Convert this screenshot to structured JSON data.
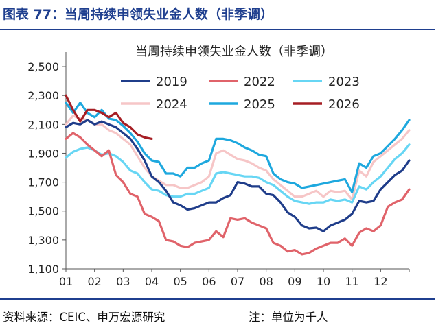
{
  "figure": {
    "title": "图表 77：当周持续申领失业金人数（非季调）",
    "source": "资料来源：CEIC、申万宏源研究",
    "note": "注：单位为千人"
  },
  "chart_data": {
    "type": "line",
    "title": "当周持续申领失业金人数（非季调）",
    "xlabel": "",
    "ylabel": "",
    "x_domain": [
      1,
      13
    ],
    "ylim": [
      1100,
      2600
    ],
    "yticks": [
      1100,
      1300,
      1500,
      1700,
      1900,
      2100,
      2300,
      2500
    ],
    "ytick_labels": [
      "1,100",
      "1,300",
      "1,500",
      "1,700",
      "1,900",
      "2,100",
      "2,300",
      "2,500"
    ],
    "xticks": [
      "01",
      "02",
      "03",
      "04",
      "05",
      "06",
      "07",
      "08",
      "09",
      "10",
      "11",
      "12"
    ],
    "grid": false,
    "legend": "top, inside plot, 3 columns",
    "series": [
      {
        "name": "2019",
        "color": "#1f3d8a",
        "x": [
          1.0,
          1.25,
          1.5,
          1.75,
          2.0,
          2.25,
          2.5,
          2.75,
          3.0,
          3.25,
          3.5,
          3.75,
          4.0,
          4.25,
          4.5,
          4.75,
          5.0,
          5.25,
          5.5,
          5.75,
          6.0,
          6.25,
          6.5,
          6.75,
          7.0,
          7.25,
          7.5,
          7.75,
          8.0,
          8.25,
          8.5,
          8.75,
          9.0,
          9.25,
          9.5,
          9.75,
          10.0,
          10.25,
          10.5,
          10.75,
          11.0,
          11.25,
          11.5,
          11.75,
          12.0,
          12.25,
          12.5,
          12.75,
          13.0
        ],
        "y": [
          2080,
          2110,
          2100,
          2130,
          2100,
          2120,
          2100,
          2080,
          2040,
          2000,
          1930,
          1850,
          1740,
          1700,
          1640,
          1560,
          1540,
          1510,
          1520,
          1540,
          1560,
          1560,
          1590,
          1610,
          1700,
          1690,
          1670,
          1670,
          1620,
          1610,
          1560,
          1490,
          1460,
          1400,
          1380,
          1385,
          1360,
          1400,
          1420,
          1440,
          1480,
          1570,
          1560,
          1570,
          1650,
          1700,
          1750,
          1780,
          1850
        ]
      },
      {
        "name": "2022",
        "color": "#e0636a",
        "x": [
          1.0,
          1.25,
          1.5,
          1.75,
          2.0,
          2.25,
          2.5,
          2.75,
          3.0,
          3.25,
          3.5,
          3.75,
          4.0,
          4.25,
          4.5,
          4.75,
          5.0,
          5.25,
          5.5,
          5.75,
          6.0,
          6.25,
          6.5,
          6.75,
          7.0,
          7.25,
          7.5,
          7.75,
          8.0,
          8.25,
          8.5,
          8.75,
          9.0,
          9.25,
          9.5,
          9.75,
          10.0,
          10.25,
          10.5,
          10.75,
          11.0,
          11.25,
          11.5,
          11.75,
          12.0,
          12.25,
          12.5,
          12.75,
          13.0
        ],
        "y": [
          2000,
          2040,
          2010,
          1960,
          1920,
          1880,
          1920,
          1750,
          1700,
          1620,
          1600,
          1480,
          1460,
          1430,
          1300,
          1290,
          1260,
          1250,
          1280,
          1290,
          1300,
          1360,
          1320,
          1450,
          1440,
          1450,
          1420,
          1400,
          1380,
          1280,
          1260,
          1220,
          1230,
          1200,
          1210,
          1240,
          1260,
          1280,
          1280,
          1310,
          1260,
          1350,
          1380,
          1360,
          1400,
          1530,
          1560,
          1580,
          1650
        ]
      },
      {
        "name": "2023",
        "color": "#67d6f4",
        "x": [
          1.0,
          1.25,
          1.5,
          1.75,
          2.0,
          2.25,
          2.5,
          2.75,
          3.0,
          3.25,
          3.5,
          3.75,
          4.0,
          4.25,
          4.5,
          4.75,
          5.0,
          5.25,
          5.5,
          5.75,
          6.0,
          6.25,
          6.5,
          6.75,
          7.0,
          7.25,
          7.5,
          7.75,
          8.0,
          8.25,
          8.5,
          8.75,
          9.0,
          9.25,
          9.5,
          9.75,
          10.0,
          10.25,
          10.5,
          10.75,
          11.0,
          11.25,
          11.5,
          11.75,
          12.0,
          12.25,
          12.5,
          12.75,
          13.0
        ],
        "y": [
          1870,
          1910,
          1930,
          1940,
          1920,
          1890,
          1900,
          1880,
          1840,
          1780,
          1760,
          1700,
          1650,
          1640,
          1610,
          1600,
          1600,
          1620,
          1620,
          1640,
          1660,
          1760,
          1770,
          1760,
          1750,
          1740,
          1740,
          1730,
          1700,
          1680,
          1640,
          1600,
          1570,
          1560,
          1550,
          1560,
          1560,
          1580,
          1570,
          1580,
          1560,
          1670,
          1650,
          1700,
          1740,
          1800,
          1860,
          1900,
          1960
        ]
      },
      {
        "name": "2024",
        "color": "#f6c6c7",
        "x": [
          1.0,
          1.25,
          1.5,
          1.75,
          2.0,
          2.25,
          2.5,
          2.75,
          3.0,
          3.25,
          3.5,
          3.75,
          4.0,
          4.25,
          4.5,
          4.75,
          5.0,
          5.25,
          5.5,
          5.75,
          6.0,
          6.25,
          6.5,
          6.75,
          7.0,
          7.25,
          7.5,
          7.75,
          8.0,
          8.25,
          8.5,
          8.75,
          9.0,
          9.25,
          9.5,
          9.75,
          10.0,
          10.25,
          10.5,
          10.75,
          11.0,
          11.25,
          11.5,
          11.75,
          12.0,
          12.25,
          12.5,
          12.75,
          13.0
        ],
        "y": [
          2100,
          2160,
          2140,
          2130,
          2100,
          2100,
          2060,
          2040,
          2000,
          1960,
          1880,
          1800,
          1740,
          1710,
          1680,
          1680,
          1660,
          1660,
          1680,
          1700,
          1740,
          1900,
          1920,
          1890,
          1860,
          1850,
          1830,
          1800,
          1780,
          1720,
          1680,
          1640,
          1600,
          1600,
          1620,
          1640,
          1600,
          1640,
          1630,
          1640,
          1580,
          1780,
          1740,
          1840,
          1880,
          1920,
          1960,
          2000,
          2060
        ]
      },
      {
        "name": "2025",
        "color": "#1ea8de",
        "x": [
          1.0,
          1.25,
          1.5,
          1.75,
          2.0,
          2.25,
          2.5,
          2.75,
          3.0,
          3.25,
          3.5,
          3.75,
          4.0,
          4.25,
          4.5,
          4.75,
          5.0,
          5.25,
          5.5,
          5.75,
          6.0,
          6.25,
          6.5,
          6.75,
          7.0,
          7.25,
          7.5,
          7.75,
          8.0,
          8.25,
          8.5,
          8.75,
          9.0,
          9.25,
          9.5,
          9.75,
          10.0,
          10.25,
          10.5,
          10.75,
          11.0,
          11.25,
          11.5,
          11.75,
          12.0,
          12.25,
          12.5,
          12.75,
          13.0
        ],
        "y": [
          2250,
          2180,
          2250,
          2180,
          2150,
          2200,
          2140,
          2130,
          2090,
          2040,
          1980,
          1900,
          1850,
          1840,
          1760,
          1760,
          1740,
          1800,
          1800,
          1830,
          1850,
          2000,
          2000,
          1990,
          1970,
          1940,
          1920,
          1890,
          1880,
          1760,
          1720,
          1700,
          1690,
          1660,
          1670,
          1680,
          1690,
          1700,
          1710,
          1720,
          1630,
          1830,
          1800,
          1880,
          1900,
          1950,
          2000,
          2060,
          2130
        ]
      },
      {
        "name": "2026",
        "color": "#a61e24",
        "x": [
          1.0,
          1.25,
          1.5,
          1.75,
          2.0,
          2.25,
          2.5,
          2.75,
          3.0,
          3.25,
          3.5,
          3.75,
          4.0
        ],
        "y": [
          2300,
          2200,
          2120,
          2200,
          2200,
          2180,
          2150,
          2180,
          2110,
          2080,
          2030,
          2010,
          2000
        ]
      }
    ]
  }
}
